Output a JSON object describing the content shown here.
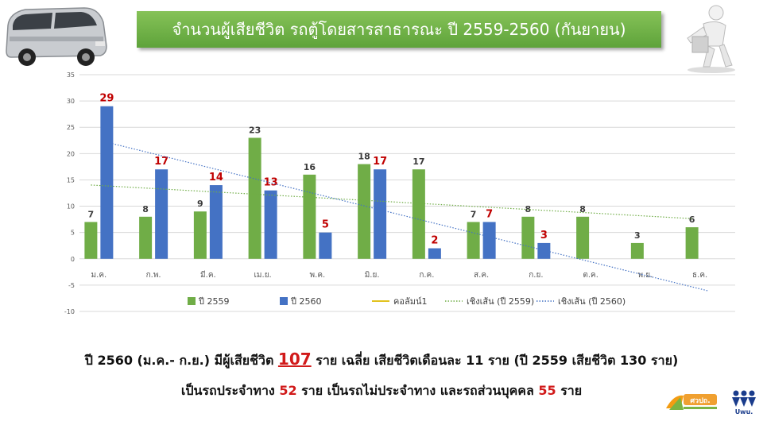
{
  "header": {
    "title": "จำนวนผู้เสียชีวิต รถตู้โดยสารสาธารณะ ปี 2559-2560 (กันยายน)"
  },
  "chart_data": {
    "type": "bar",
    "categories": [
      "ม.ค.",
      "ก.พ.",
      "มี.ค.",
      "เม.ย.",
      "พ.ค.",
      "มิ.ย.",
      "ก.ค.",
      "ส.ค.",
      "ก.ย.",
      "ต.ค.",
      "พ.ย.",
      "ธ.ค."
    ],
    "series": [
      {
        "name": "ปี 2559",
        "color": "#70ad47",
        "label_color": "#3a3a3a",
        "values": [
          7,
          8,
          9,
          23,
          16,
          18,
          17,
          7,
          8,
          8,
          3,
          6
        ]
      },
      {
        "name": "ปี 2560",
        "color": "#4472c4",
        "label_color": "#c00000",
        "values": [
          29,
          17,
          14,
          13,
          5,
          17,
          2,
          7,
          3,
          null,
          null,
          null
        ]
      }
    ],
    "extra_legend": [
      {
        "name": "คอลัมน์1",
        "style": "line",
        "color": "#e2c21e"
      },
      {
        "name": "เชิงเส้น (ปี 2559)",
        "style": "dotted",
        "color": "#70ad47"
      },
      {
        "name": "เชิงเส้น (ปี 2560)",
        "style": "dotted",
        "color": "#4472c4"
      }
    ],
    "yticks": [
      "35",
      "30",
      "25",
      "20",
      "15",
      "10",
      "5",
      "0",
      "-5",
      "-10"
    ],
    "ylim": [
      -10,
      35
    ],
    "grid": true,
    "legend_position": "bottom"
  },
  "summary": {
    "line1_a": "ปี 2560 (ม.ค.- ก.ย.) มีผู้เสียชีวิต",
    "line1_total": "107",
    "line1_b": "ราย เฉลี่ย เสียชีวิตเดือนละ 11 ราย (ปี 2559 เสียชีวิต 130 ราย)",
    "line2_a": "เป็นรถประจำทาง",
    "line2_v1": "52",
    "line2_b": "ราย เป็นรถไม่ประจำทาง และรถส่วนบุคคล",
    "line2_v2": "55",
    "line2_c": "ราย"
  },
  "logos": {
    "logo1_text": "ศวปถ.",
    "logo2_text": "Uwu."
  }
}
